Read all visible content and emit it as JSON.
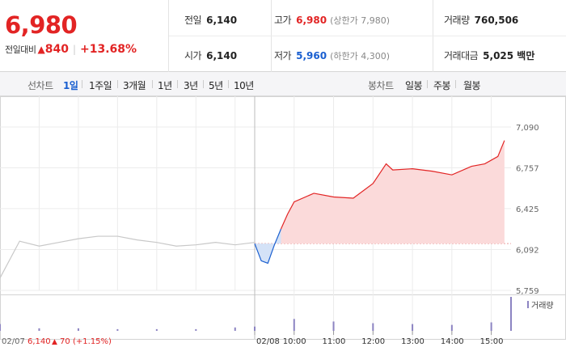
{
  "header": {
    "price": "6,980",
    "change_label": "전일대비",
    "change_arrow": "▲",
    "change_amount": "840",
    "change_rate": "+13.68%",
    "stats": {
      "prev_close": {
        "label": "전일",
        "value": "6,140"
      },
      "open": {
        "label": "시가",
        "value": "6,140"
      },
      "high": {
        "label": "고가",
        "value": "6,980",
        "note": "(상한가 7,980)"
      },
      "low": {
        "label": "저가",
        "value": "5,960",
        "note": "(하한가 4,300)"
      },
      "volume": {
        "label": "거래량",
        "value": "760,506"
      },
      "amount": {
        "label": "거래대금",
        "value": "5,025 백만"
      }
    }
  },
  "tabbar": {
    "line_label": "선차트",
    "line_tabs": [
      "1일",
      "1주일",
      "3개월",
      "1년",
      "3년",
      "5년",
      "10년"
    ],
    "active_line_tab": "1일",
    "candle_label": "봉차트",
    "candle_tabs": [
      "일봉",
      "주봉",
      "월봉"
    ]
  },
  "footer": {
    "prev_date": "02/07",
    "prev_price": "6,140",
    "prev_arrow": "▲",
    "prev_change": "70",
    "prev_rate": "(+1.15%)",
    "volume_legend": "거래량"
  },
  "colors": {
    "up": "#e22424",
    "down": "#1a5fd0",
    "prev_day": "#c8c8c8",
    "up_fill": "#fbdada",
    "down_fill": "#d4e2f7",
    "volume": "#8c84c2"
  },
  "chart_data": {
    "type": "line",
    "y_ticks": [
      "7,090",
      "6,757",
      "6,425",
      "6,092",
      "5,759"
    ],
    "ylim": [
      5759,
      7090
    ],
    "x_ticks": [
      "02/08",
      "10:00",
      "11:00",
      "12:00",
      "13:00",
      "14:00",
      "15:00"
    ],
    "baseline": 6140,
    "series": [
      {
        "x": [
          "02/07 09:00",
          "02/07 09:30",
          "02/07 10:00",
          "02/07 10:30",
          "02/07 11:00",
          "02/07 11:30",
          "02/07 12:00",
          "02/07 12:30",
          "02/07 13:00",
          "02/07 13:30",
          "02/07 14:00",
          "02/07 14:30",
          "02/07 15:00",
          "02/07 15:30"
        ],
        "values": [
          5860,
          6160,
          6120,
          6150,
          6180,
          6200,
          6200,
          6170,
          6150,
          6120,
          6130,
          6150,
          6130,
          6150
        ]
      },
      {
        "x": [
          "02/08 09:00",
          "02/08 09:10",
          "02/08 09:20",
          "02/08 09:30",
          "02/08 09:40",
          "02/08 09:50",
          "02/08 10:00",
          "02/08 10:30",
          "02/08 11:00",
          "02/08 11:30",
          "02/08 12:00",
          "02/08 12:20",
          "02/08 12:30",
          "02/08 13:00",
          "02/08 13:30",
          "02/08 14:00",
          "02/08 14:30",
          "02/08 14:50",
          "02/08 15:10",
          "02/08 15:20"
        ],
        "values": [
          6140,
          6000,
          5980,
          6130,
          6260,
          6380,
          6480,
          6550,
          6520,
          6510,
          6630,
          6790,
          6740,
          6750,
          6730,
          6700,
          6770,
          6790,
          6850,
          6980
        ]
      }
    ],
    "volume": {
      "x": [
        "02/07 09:00",
        "02/07 10:00",
        "02/07 11:00",
        "02/07 12:00",
        "02/07 13:00",
        "02/07 14:00",
        "02/07 15:00",
        "02/08 09:00",
        "02/08 10:00",
        "02/08 11:00",
        "02/08 12:00",
        "02/08 13:00",
        "02/08 14:00",
        "02/08 15:00",
        "02/08 15:30"
      ],
      "values": [
        8,
        3,
        3,
        2,
        2,
        2,
        4,
        5,
        14,
        11,
        9,
        8,
        7,
        10,
        40
      ]
    }
  }
}
